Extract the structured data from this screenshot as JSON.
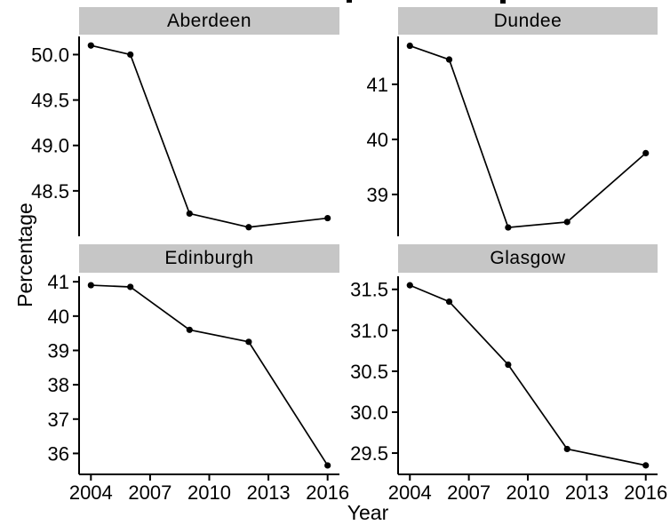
{
  "figure": {
    "xlabel": "Year",
    "ylabel": "Percentage",
    "x_ticks": {
      "values": [
        2004,
        2007,
        2010,
        2013,
        2016
      ],
      "labels": [
        "2004",
        "2007",
        "2010",
        "2013",
        "2016"
      ]
    },
    "xlim": [
      2003.4,
      2016.6
    ],
    "colors": {
      "strip_fill": "#c6c6c6",
      "strip_text": "#000000",
      "axis": "#000000",
      "line": "#000000",
      "point": "#000000",
      "tick_text": "#000000",
      "background": "#ffffff"
    }
  },
  "chart_data": [
    {
      "type": "line",
      "title": "Aberdeen",
      "x": [
        2004,
        2006,
        2009,
        2012,
        2016
      ],
      "values": [
        50.1,
        50.0,
        48.25,
        48.1,
        48.2
      ],
      "ylim": [
        48.0,
        50.2
      ],
      "y_ticks": {
        "values": [
          48.5,
          49.0,
          49.5,
          50.0
        ],
        "labels": [
          "48.5",
          "49.0",
          "49.5",
          "50.0"
        ]
      },
      "xlabel": "Year",
      "ylabel": "Percentage",
      "legend": "none",
      "grid": "off"
    },
    {
      "type": "line",
      "title": "Dundee",
      "x": [
        2004,
        2006,
        2009,
        2012,
        2016
      ],
      "values": [
        41.7,
        41.45,
        38.4,
        38.5,
        39.75
      ],
      "ylim": [
        38.24,
        41.87
      ],
      "y_ticks": {
        "values": [
          39,
          40,
          41
        ],
        "labels": [
          "39",
          "40",
          "41"
        ]
      },
      "xlabel": "Year",
      "ylabel": "Percentage",
      "legend": "none",
      "grid": "off"
    },
    {
      "type": "line",
      "title": "Edinburgh",
      "x": [
        2004,
        2006,
        2009,
        2012,
        2016
      ],
      "values": [
        40.9,
        40.85,
        39.6,
        39.25,
        35.65
      ],
      "ylim": [
        35.39,
        41.16
      ],
      "y_ticks": {
        "values": [
          36,
          37,
          38,
          39,
          40,
          41
        ],
        "labels": [
          "36",
          "37",
          "38",
          "39",
          "40",
          "41"
        ]
      },
      "xlabel": "Year",
      "ylabel": "Percentage",
      "legend": "none",
      "grid": "off"
    },
    {
      "type": "line",
      "title": "Glasgow",
      "x": [
        2004,
        2006,
        2009,
        2012,
        2016
      ],
      "values": [
        31.55,
        31.35,
        30.58,
        29.55,
        29.35
      ],
      "ylim": [
        29.24,
        31.66
      ],
      "y_ticks": {
        "values": [
          29.5,
          30.0,
          30.5,
          31.0,
          31.5
        ],
        "labels": [
          "29.5",
          "30.0",
          "30.5",
          "31.0",
          "31.5"
        ]
      },
      "xlabel": "Year",
      "ylabel": "Percentage",
      "legend": "none",
      "grid": "off"
    }
  ]
}
